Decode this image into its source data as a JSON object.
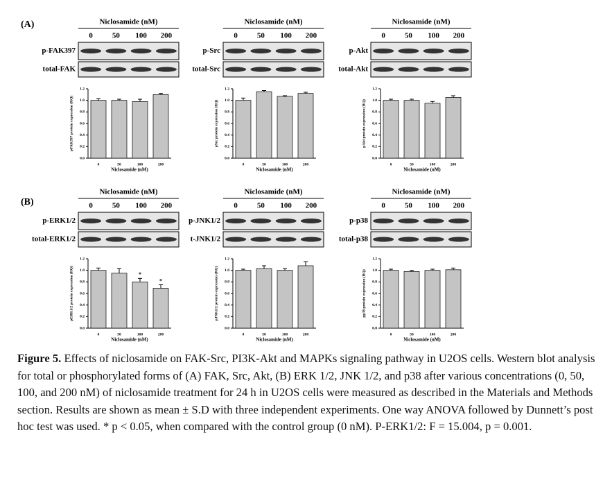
{
  "panels": [
    {
      "label": "(A)"
    },
    {
      "label": "(B)"
    }
  ],
  "blots": [
    {
      "header": "Niclosamide (nM)",
      "lanes": [
        "0",
        "50",
        "100",
        "200"
      ],
      "rows": [
        "p-FAK397",
        "total-FAK"
      ]
    },
    {
      "header": "Niclosamide (nM)",
      "lanes": [
        "0",
        "50",
        "100",
        "200"
      ],
      "rows": [
        "p-Src",
        "total-Src"
      ]
    },
    {
      "header": "Niclosamide (nM)",
      "lanes": [
        "0",
        "50",
        "100",
        "200"
      ],
      "rows": [
        "p-Akt",
        "total-Akt"
      ]
    },
    {
      "header": "Niclosamide (nM)",
      "lanes": [
        "0",
        "50",
        "100",
        "200"
      ],
      "rows": [
        "p-ERK1/2",
        "total-ERK1/2"
      ]
    },
    {
      "header": "Niclosamide (nM)",
      "lanes": [
        "0",
        "50",
        "100",
        "200"
      ],
      "rows": [
        "p-JNK1/2",
        "t-JNK1/2"
      ]
    },
    {
      "header": "Niclosamide (nM)",
      "lanes": [
        "0",
        "50",
        "100",
        "200"
      ],
      "rows": [
        "p-p38",
        "total-p38"
      ]
    }
  ],
  "chart_data": [
    {
      "type": "bar",
      "ylabel": "pFAK397 protein expression (RQ)",
      "xlabel": "Niclosamide (nM)",
      "categories": [
        "0",
        "50",
        "100",
        "200"
      ],
      "values": [
        1.0,
        1.0,
        0.98,
        1.1
      ],
      "errors": [
        0.03,
        0.02,
        0.04,
        0.02
      ],
      "significance": [
        null,
        null,
        null,
        null
      ],
      "color": "#c4c4c4",
      "ylim": [
        0,
        1.2
      ],
      "yticks": [
        {
          "value": 0,
          "label": "0.0"
        },
        0.2,
        0.4,
        0.6,
        0.8,
        {
          "value": 1,
          "label": "1.0"
        },
        1.2
      ]
    },
    {
      "type": "bar",
      "ylabel": "pSrc protein expression (RQ)",
      "xlabel": "Niclosamide (nM)",
      "categories": [
        "0",
        "50",
        "100",
        "200"
      ],
      "values": [
        1.0,
        1.15,
        1.07,
        1.12
      ],
      "errors": [
        0.04,
        0.02,
        0.01,
        0.02
      ],
      "significance": [
        null,
        null,
        null,
        null
      ],
      "color": "#c4c4c4",
      "ylim": [
        0,
        1.2
      ],
      "yticks": [
        {
          "value": 0,
          "label": "0.0"
        },
        0.2,
        0.4,
        0.6,
        0.8,
        {
          "value": 1,
          "label": "1.0"
        },
        1.2
      ]
    },
    {
      "type": "bar",
      "ylabel": "pAkt protein expression (RQ)",
      "xlabel": "Niclosamide (nM)",
      "categories": [
        "0",
        "50",
        "100",
        "200"
      ],
      "values": [
        1.0,
        1.0,
        0.95,
        1.05
      ],
      "errors": [
        0.02,
        0.02,
        0.03,
        0.03
      ],
      "significance": [
        null,
        null,
        null,
        null
      ],
      "color": "#c4c4c4",
      "ylim": [
        0,
        1.2
      ],
      "yticks": [
        {
          "value": 0,
          "label": "0.0"
        },
        0.2,
        0.4,
        0.6,
        0.8,
        {
          "value": 1,
          "label": "1.0"
        },
        1.2
      ]
    },
    {
      "type": "bar",
      "ylabel": "pERK1/2 protein expression (RQ)",
      "xlabel": "Niclosamide (nM)",
      "categories": [
        "0",
        "50",
        "100",
        "200"
      ],
      "values": [
        1.0,
        0.95,
        0.8,
        0.69
      ],
      "errors": [
        0.04,
        0.08,
        0.06,
        0.06
      ],
      "significance": [
        null,
        null,
        "*",
        "*"
      ],
      "color": "#c4c4c4",
      "ylim": [
        0,
        1.2
      ],
      "yticks": [
        {
          "value": 0,
          "label": "0.0"
        },
        0.2,
        0.4,
        0.6,
        0.8,
        {
          "value": 1,
          "label": "1.0"
        },
        1.2
      ]
    },
    {
      "type": "bar",
      "ylabel": "pJNK1/2 protein expression (RQ)",
      "xlabel": "Niclosamide (nM)",
      "categories": [
        "0",
        "50",
        "100",
        "200"
      ],
      "values": [
        1.0,
        1.03,
        1.0,
        1.08
      ],
      "errors": [
        0.02,
        0.05,
        0.03,
        0.07
      ],
      "significance": [
        null,
        null,
        null,
        null
      ],
      "color": "#c4c4c4",
      "ylim": [
        0,
        1.2
      ],
      "yticks": [
        {
          "value": 0,
          "label": "0.0"
        },
        0.2,
        0.4,
        0.6,
        0.8,
        {
          "value": 1,
          "label": "1.0"
        },
        1.2
      ]
    },
    {
      "type": "bar",
      "ylabel": "pp38 protein expression (RQ)",
      "xlabel": "Niclosamide (nM)",
      "categories": [
        "0",
        "50",
        "100",
        "200"
      ],
      "values": [
        1.0,
        0.98,
        1.0,
        1.01
      ],
      "errors": [
        0.02,
        0.02,
        0.02,
        0.03
      ],
      "significance": [
        null,
        null,
        null,
        null
      ],
      "color": "#c4c4c4",
      "ylim": [
        0,
        1.2
      ],
      "yticks": [
        {
          "value": 0,
          "label": "0.0"
        },
        0.2,
        0.4,
        0.6,
        0.8,
        {
          "value": 1,
          "label": "1.0"
        },
        1.2
      ]
    }
  ],
  "caption": {
    "label": "Figure 5.",
    "text": "Effects of niclosamide on FAK-Src, PI3K-Akt and MAPKs signaling pathway in U2OS cells. Western blot analysis for total or phosphorylated forms of (A) FAK, Src, Akt, (B) ERK 1/2, JNK 1/2, and p38 after various concentrations (0, 50, 100, and 200 nM) of niclosamide treatment for 24 h in U2OS cells were measured as described in the Materials and Methods section. Results are shown as mean ± S.D with three independent experiments. One way ANOVA followed by Dunnett’s post hoc test was used. * p < 0.05, when compared with the control group (0 nM). P-ERK1/2: F = 15.004, p = 0.001."
  }
}
